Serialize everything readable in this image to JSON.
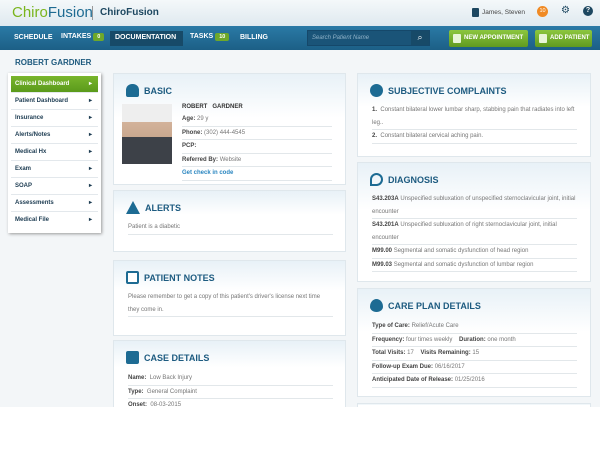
{
  "header": {
    "logo": "ChiroFusion",
    "app_name": "ChiroFusion",
    "user": "James, Steven",
    "notifications": "10"
  },
  "nav": {
    "items": [
      "SCHEDULE",
      "INTAKES",
      "DOCUMENTATION",
      "TASKS",
      "BILLING"
    ],
    "intakes_badge": "0",
    "tasks_badge": "10",
    "search_placeholder": "Search Patient Name",
    "new_appointment": "NEW APPOINTMENT",
    "add_patient": "ADD PATIENT"
  },
  "patient_title": "ROBERT GARDNER",
  "sidebar": {
    "items": [
      "Clinical Dashboard",
      "Patient Dashboard",
      "Insurance",
      "Alerts/Notes",
      "Medical Hx",
      "Exam",
      "SOAP",
      "Assessments",
      "Medical File"
    ],
    "active": 0
  },
  "basic": {
    "title": "BASIC",
    "name": "ROBERT   GARDNER",
    "age_label": "Age:",
    "age": "29 y",
    "phone_label": "Phone:",
    "phone": "(302) 444-4545",
    "pcp_label": "PCP:",
    "referred_label": "Referred By:",
    "referred": "Website",
    "checkin_link": "Get check in code"
  },
  "alerts": {
    "title": "ALERTS",
    "text": "Patient is a diabetic"
  },
  "notes": {
    "title": "PATIENT NOTES",
    "text": "Please remember to get a copy of this patient's driver's license next time they come in."
  },
  "case": {
    "title": "CASE DETAILS",
    "rows": [
      {
        "label": "Name:",
        "value": "Low Back Injury"
      },
      {
        "label": "Type:",
        "value": "General Complaint"
      },
      {
        "label": "Onset:",
        "value": "08-03-2015"
      }
    ]
  },
  "complaints": {
    "title": "SUBJECTIVE COMPLAINTS",
    "items": [
      {
        "num": "1.",
        "text": "Constant bilateral lower lumbar sharp, stabbing pain that radiates into left leg.."
      },
      {
        "num": "2.",
        "text": "Constant bilateral cervical aching pain."
      }
    ]
  },
  "diagnosis": {
    "title": "DIAGNOSIS",
    "items": [
      {
        "code": "S43.203A",
        "text": "Unspecified subluxation of unspecified sternoclavicular joint, initial encounter"
      },
      {
        "code": "S43.201A",
        "text": "Unspecified subluxation of right sternoclavicular joint, initial encounter"
      },
      {
        "code": "M99.00",
        "text": "Segmental and somatic dysfunction of head region"
      },
      {
        "code": "M99.03",
        "text": "Segmental and somatic dysfunction of lumbar region"
      }
    ]
  },
  "careplan": {
    "title": "CARE PLAN DETAILS",
    "type_label": "Type of Care:",
    "type": "Relief/Acute Care",
    "freq_label": "Frequency:",
    "freq": "four times weekly",
    "dur_label": "Duration:",
    "dur": "one month",
    "visits_label": "Total Visits:",
    "visits": "17",
    "remaining_label": "Visits Remaining:",
    "remaining": "15",
    "followup_label": "Follow-up Exam Due:",
    "followup": "06/16/2017",
    "release_label": "Anticipated Date of Release:",
    "release": "01/25/2016"
  },
  "colors": {
    "brand_blue": "#1e6b92",
    "accent_green": "#7ab51d",
    "nav_bg": "#2a7aa6"
  }
}
